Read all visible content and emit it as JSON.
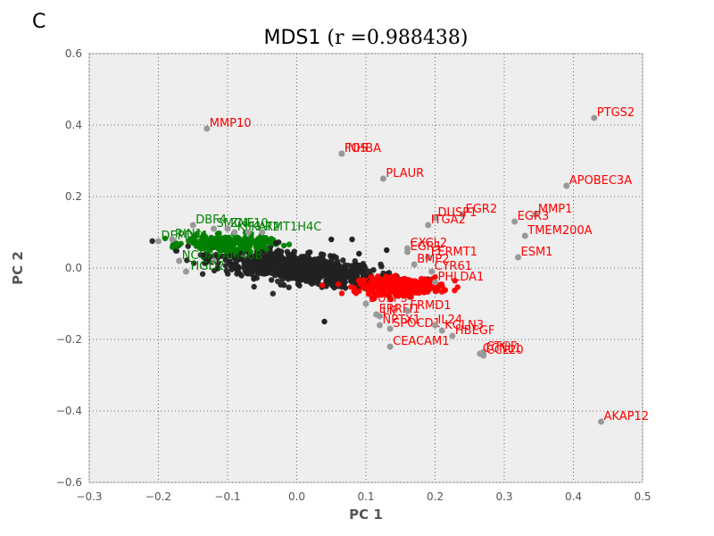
{
  "panel_letter": "C",
  "chart_data": {
    "type": "scatter",
    "title": "MDS1",
    "title_suffix": "(r =0.988438)",
    "xlabel": "PC 1",
    "ylabel": "PC 2",
    "xlim": [
      -0.3,
      0.5
    ],
    "ylim": [
      -0.6,
      0.6
    ],
    "xticks": [
      -0.3,
      -0.2,
      -0.1,
      0.0,
      0.1,
      0.2,
      0.3,
      0.4,
      0.5
    ],
    "yticks": [
      -0.6,
      -0.4,
      -0.2,
      0.0,
      0.2,
      0.4,
      0.6
    ],
    "xtick_labels": [
      "−0.3",
      "−0.2",
      "−0.1",
      "0.0",
      "0.1",
      "0.2",
      "0.3",
      "0.4",
      "0.5"
    ],
    "ytick_labels": [
      "−0.6",
      "−0.4",
      "−0.2",
      "0.0",
      "0.2",
      "0.4",
      "0.6"
    ],
    "grid": true,
    "colors": {
      "background": "#eeeeee",
      "bulk": "#222222",
      "up": "#ff0000",
      "down": "#008000",
      "labeled_point": "#999999",
      "axis_text": "#555555"
    },
    "clusters": [
      {
        "color": "#222222",
        "cx": 0.0,
        "cy": 0.0,
        "sx": 0.06,
        "sy": 0.02,
        "n": 900
      },
      {
        "color": "#ff0000",
        "cx": 0.15,
        "cy": -0.05,
        "sx": 0.03,
        "sy": 0.012,
        "n": 300
      },
      {
        "color": "#008000",
        "cx": -0.1,
        "cy": 0.07,
        "sx": 0.03,
        "sy": 0.01,
        "n": 250
      }
    ],
    "labeled_points": [
      {
        "label": "PTGS2",
        "x": 0.43,
        "y": 0.42,
        "color": "#ff0000"
      },
      {
        "label": "APOBEC3A",
        "x": 0.39,
        "y": 0.23,
        "color": "#ff0000"
      },
      {
        "label": "AKAP12",
        "x": 0.44,
        "y": -0.43,
        "color": "#ff0000"
      },
      {
        "label": "MMP10",
        "x": -0.13,
        "y": 0.39,
        "color": "#ff0000"
      },
      {
        "label": "FOS",
        "x": 0.065,
        "y": 0.32,
        "color": "#ff0000"
      },
      {
        "label": "INHBA",
        "x": 0.065,
        "y": 0.32,
        "color": "#ff0000"
      },
      {
        "label": "PLAUR",
        "x": 0.125,
        "y": 0.25,
        "color": "#ff0000"
      },
      {
        "label": "MMP1",
        "x": 0.345,
        "y": 0.15,
        "color": "#ff0000"
      },
      {
        "label": "EGR2",
        "x": 0.24,
        "y": 0.15,
        "color": "#ff0000"
      },
      {
        "label": "DUSP1",
        "x": 0.2,
        "y": 0.14,
        "color": "#ff0000"
      },
      {
        "label": "ITGA2",
        "x": 0.19,
        "y": 0.12,
        "color": "#ff0000"
      },
      {
        "label": "EGR3",
        "x": 0.315,
        "y": 0.13,
        "color": "#ff0000"
      },
      {
        "label": "TMEM200A",
        "x": 0.33,
        "y": 0.09,
        "color": "#ff0000"
      },
      {
        "label": "ESM1",
        "x": 0.32,
        "y": 0.03,
        "color": "#ff0000"
      },
      {
        "label": "CXCL2",
        "x": 0.16,
        "y": 0.055,
        "color": "#ff0000"
      },
      {
        "label": "EGR1",
        "x": 0.16,
        "y": 0.045,
        "color": "#ff0000"
      },
      {
        "label": "FERMT1",
        "x": 0.19,
        "y": 0.03,
        "color": "#ff0000"
      },
      {
        "label": "BMP2",
        "x": 0.17,
        "y": 0.01,
        "color": "#ff0000"
      },
      {
        "label": "CYR61",
        "x": 0.195,
        "y": -0.01,
        "color": "#ff0000"
      },
      {
        "label": "PHLDA1",
        "x": 0.2,
        "y": -0.04,
        "color": "#ff0000"
      },
      {
        "label": "DUSP5",
        "x": 0.1,
        "y": -0.1,
        "color": "#ff0000"
      },
      {
        "label": "ERRFI1",
        "x": 0.115,
        "y": -0.13,
        "color": "#ff0000"
      },
      {
        "label": "LIF",
        "x": 0.12,
        "y": -0.135,
        "color": "#ff0000"
      },
      {
        "label": "FRMD1",
        "x": 0.16,
        "y": -0.12,
        "color": "#ff0000"
      },
      {
        "label": "NPTX1",
        "x": 0.12,
        "y": -0.16,
        "color": "#ff0000"
      },
      {
        "label": "SPOCD1",
        "x": 0.135,
        "y": -0.17,
        "color": "#ff0000"
      },
      {
        "label": "IL24",
        "x": 0.2,
        "y": -0.16,
        "color": "#ff0000"
      },
      {
        "label": "KGLN3",
        "x": 0.21,
        "y": -0.175,
        "color": "#ff0000"
      },
      {
        "label": "HBEGF",
        "x": 0.225,
        "y": -0.19,
        "color": "#ff0000"
      },
      {
        "label": "CEACAM1",
        "x": 0.135,
        "y": -0.22,
        "color": "#ff0000"
      },
      {
        "label": "CTGF",
        "x": 0.27,
        "y": -0.235,
        "color": "#ff0000"
      },
      {
        "label": "CCL20",
        "x": 0.27,
        "y": -0.245,
        "color": "#ff0000"
      },
      {
        "label": "CCNL1",
        "x": 0.265,
        "y": -0.24,
        "color": "#ff0000"
      },
      {
        "label": "DBF4",
        "x": -0.15,
        "y": 0.12,
        "color": "#008000"
      },
      {
        "label": "SMC4",
        "x": -0.12,
        "y": 0.11,
        "color": "#008000"
      },
      {
        "label": "ZNF10",
        "x": -0.1,
        "y": 0.11,
        "color": "#008000"
      },
      {
        "label": "KIF1",
        "x": -0.09,
        "y": 0.1,
        "color": "#008000"
      },
      {
        "label": "KAT2",
        "x": -0.07,
        "y": 0.1,
        "color": "#008000"
      },
      {
        "label": "RMT1H4C",
        "x": -0.05,
        "y": 0.1,
        "color": "#008000"
      },
      {
        "label": "DEPDC1",
        "x": -0.2,
        "y": 0.075,
        "color": "#008000"
      },
      {
        "label": "RIN1",
        "x": -0.18,
        "y": 0.08,
        "color": "#008000"
      },
      {
        "label": "NCOA7",
        "x": -0.17,
        "y": 0.02,
        "color": "#008000"
      },
      {
        "label": "FAM46B",
        "x": -0.12,
        "y": 0.02,
        "color": "#008000"
      },
      {
        "label": "TIGD2",
        "x": -0.16,
        "y": -0.01,
        "color": "#008000"
      }
    ]
  }
}
